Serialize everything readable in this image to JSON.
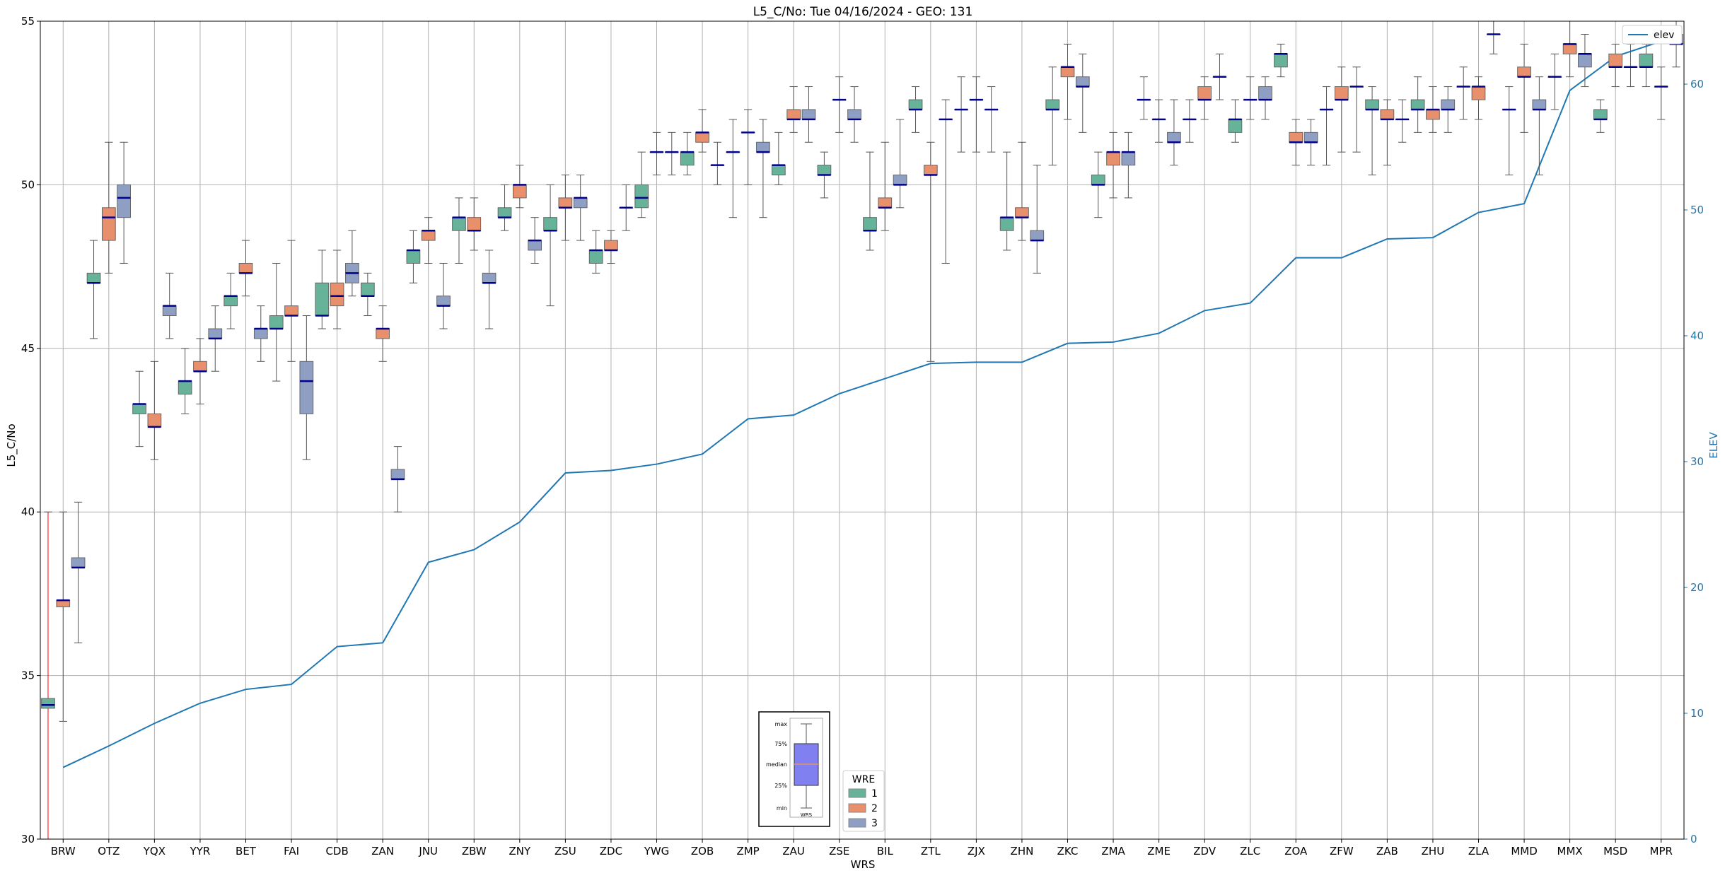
{
  "chart_data": {
    "type": "box",
    "title": "L5_C/No: Tue 04/16/2024 - GEO: 131",
    "xlabel": "WRS",
    "ylabel": "L5_C/No",
    "y2label": "ELEV",
    "ylim": [
      30,
      55
    ],
    "y2lim": [
      0,
      65
    ],
    "yticks": [
      30,
      35,
      40,
      45,
      50,
      55
    ],
    "y2ticks": [
      0,
      10,
      20,
      30,
      40,
      50,
      60
    ],
    "grid": true,
    "categories": [
      "BRW",
      "OTZ",
      "YQX",
      "YYR",
      "BET",
      "FAI",
      "CDB",
      "ZAN",
      "JNU",
      "ZBW",
      "ZNY",
      "ZSU",
      "ZDC",
      "YWG",
      "ZOB",
      "ZMP",
      "ZAU",
      "ZSE",
      "BIL",
      "ZTL",
      "ZJX",
      "ZHN",
      "ZKC",
      "ZMA",
      "ZME",
      "ZDV",
      "ZLC",
      "ZOA",
      "ZFW",
      "ZAB",
      "ZHU",
      "ZLA",
      "MMD",
      "MMX",
      "MSD",
      "MPR"
    ],
    "wre_colors": {
      "1": "#66b39a",
      "2": "#e8906c",
      "3": "#8f9fc4"
    },
    "box_stats": [
      {
        "wrs": "BRW",
        "wre": 1,
        "min": 30,
        "q1": 34.0,
        "median": 34.1,
        "q3": 34.3,
        "max": 40
      },
      {
        "wrs": "BRW",
        "wre": 2,
        "min": 33.6,
        "q1": 37.1,
        "median": 37.3,
        "q3": 37.3,
        "max": 40.0
      },
      {
        "wrs": "BRW",
        "wre": 3,
        "min": 36.0,
        "q1": 38.3,
        "median": 38.3,
        "q3": 38.6,
        "max": 40.3
      },
      {
        "wrs": "OTZ",
        "wre": 1,
        "min": 45.3,
        "q1": 47.0,
        "median": 47.0,
        "q3": 47.3,
        "max": 48.3
      },
      {
        "wrs": "OTZ",
        "wre": 2,
        "min": 47.3,
        "q1": 48.3,
        "median": 49.0,
        "q3": 49.3,
        "max": 51.3
      },
      {
        "wrs": "OTZ",
        "wre": 3,
        "min": 47.6,
        "q1": 49.0,
        "median": 49.6,
        "q3": 50.0,
        "max": 51.3
      },
      {
        "wrs": "YQX",
        "wre": 1,
        "min": 42.0,
        "q1": 43.0,
        "median": 43.3,
        "q3": 43.3,
        "max": 44.3
      },
      {
        "wrs": "YQX",
        "wre": 2,
        "min": 41.6,
        "q1": 42.6,
        "median": 42.6,
        "q3": 43.0,
        "max": 44.6
      },
      {
        "wrs": "YQX",
        "wre": 3,
        "min": 45.3,
        "q1": 46.0,
        "median": 46.3,
        "q3": 46.3,
        "max": 47.3
      },
      {
        "wrs": "YYR",
        "wre": 1,
        "min": 43.0,
        "q1": 43.6,
        "median": 44.0,
        "q3": 44.0,
        "max": 45.0
      },
      {
        "wrs": "YYR",
        "wre": 2,
        "min": 43.3,
        "q1": 44.3,
        "median": 44.3,
        "q3": 44.6,
        "max": 45.3
      },
      {
        "wrs": "YYR",
        "wre": 3,
        "min": 44.3,
        "q1": 45.3,
        "median": 45.3,
        "q3": 45.6,
        "max": 46.3
      },
      {
        "wrs": "BET",
        "wre": 1,
        "min": 45.6,
        "q1": 46.3,
        "median": 46.6,
        "q3": 46.6,
        "max": 47.3
      },
      {
        "wrs": "BET",
        "wre": 2,
        "min": 46.6,
        "q1": 47.3,
        "median": 47.3,
        "q3": 47.6,
        "max": 48.3
      },
      {
        "wrs": "BET",
        "wre": 3,
        "min": 44.6,
        "q1": 45.3,
        "median": 45.6,
        "q3": 45.6,
        "max": 46.3
      },
      {
        "wrs": "FAI",
        "wre": 1,
        "min": 44.0,
        "q1": 45.6,
        "median": 45.6,
        "q3": 46.0,
        "max": 47.6
      },
      {
        "wrs": "FAI",
        "wre": 2,
        "min": 44.6,
        "q1": 46.0,
        "median": 46.0,
        "q3": 46.3,
        "max": 48.3
      },
      {
        "wrs": "FAI",
        "wre": 3,
        "min": 41.6,
        "q1": 43.0,
        "median": 44.0,
        "q3": 44.6,
        "max": 46.0
      },
      {
        "wrs": "CDB",
        "wre": 1,
        "min": 45.6,
        "q1": 46.0,
        "median": 46.0,
        "q3": 47.0,
        "max": 48.0
      },
      {
        "wrs": "CDB",
        "wre": 2,
        "min": 45.6,
        "q1": 46.3,
        "median": 46.6,
        "q3": 47.0,
        "max": 48.0
      },
      {
        "wrs": "CDB",
        "wre": 3,
        "min": 46.6,
        "q1": 47.0,
        "median": 47.3,
        "q3": 47.6,
        "max": 48.6
      },
      {
        "wrs": "ZAN",
        "wre": 1,
        "min": 46.0,
        "q1": 46.6,
        "median": 46.6,
        "q3": 47.0,
        "max": 47.3
      },
      {
        "wrs": "ZAN",
        "wre": 2,
        "min": 44.6,
        "q1": 45.3,
        "median": 45.6,
        "q3": 45.6,
        "max": 46.3
      },
      {
        "wrs": "ZAN",
        "wre": 3,
        "min": 40.0,
        "q1": 41.0,
        "median": 41.0,
        "q3": 41.3,
        "max": 42.0
      },
      {
        "wrs": "JNU",
        "wre": 1,
        "min": 47.0,
        "q1": 47.6,
        "median": 48.0,
        "q3": 48.0,
        "max": 48.6
      },
      {
        "wrs": "JNU",
        "wre": 2,
        "min": 47.6,
        "q1": 48.3,
        "median": 48.6,
        "q3": 48.6,
        "max": 49.0
      },
      {
        "wrs": "JNU",
        "wre": 3,
        "min": 45.6,
        "q1": 46.3,
        "median": 46.3,
        "q3": 46.6,
        "max": 47.6
      },
      {
        "wrs": "ZBW",
        "wre": 1,
        "min": 47.6,
        "q1": 48.6,
        "median": 49.0,
        "q3": 49.0,
        "max": 49.6
      },
      {
        "wrs": "ZBW",
        "wre": 2,
        "min": 48.0,
        "q1": 48.6,
        "median": 48.6,
        "q3": 49.0,
        "max": 49.6
      },
      {
        "wrs": "ZBW",
        "wre": 3,
        "min": 45.6,
        "q1": 47.0,
        "median": 47.0,
        "q3": 47.3,
        "max": 48.0
      },
      {
        "wrs": "ZNY",
        "wre": 1,
        "min": 48.6,
        "q1": 49.0,
        "median": 49.0,
        "q3": 49.3,
        "max": 50.0
      },
      {
        "wrs": "ZNY",
        "wre": 2,
        "min": 49.3,
        "q1": 49.6,
        "median": 50.0,
        "q3": 50.0,
        "max": 50.6
      },
      {
        "wrs": "ZNY",
        "wre": 3,
        "min": 47.6,
        "q1": 48.0,
        "median": 48.3,
        "q3": 48.3,
        "max": 49.0
      },
      {
        "wrs": "ZSU",
        "wre": 1,
        "min": 46.3,
        "q1": 48.6,
        "median": 48.6,
        "q3": 49.0,
        "max": 50.0
      },
      {
        "wrs": "ZSU",
        "wre": 2,
        "min": 48.3,
        "q1": 49.3,
        "median": 49.3,
        "q3": 49.6,
        "max": 50.3
      },
      {
        "wrs": "ZSU",
        "wre": 3,
        "min": 48.3,
        "q1": 49.3,
        "median": 49.6,
        "q3": 49.6,
        "max": 50.3
      },
      {
        "wrs": "ZDC",
        "wre": 1,
        "min": 47.3,
        "q1": 47.6,
        "median": 48.0,
        "q3": 48.0,
        "max": 48.6
      },
      {
        "wrs": "ZDC",
        "wre": 2,
        "min": 47.6,
        "q1": 48.0,
        "median": 48.0,
        "q3": 48.3,
        "max": 48.6
      },
      {
        "wrs": "ZDC",
        "wre": 3,
        "min": 48.6,
        "q1": 49.3,
        "median": 49.3,
        "q3": 49.3,
        "max": 50.0
      },
      {
        "wrs": "YWG",
        "wre": 1,
        "min": 49.0,
        "q1": 49.3,
        "median": 49.6,
        "q3": 50.0,
        "max": 51.0
      },
      {
        "wrs": "YWG",
        "wre": 2,
        "min": 50.3,
        "q1": 51.0,
        "median": 51.0,
        "q3": 51.0,
        "max": 51.6
      },
      {
        "wrs": "YWG",
        "wre": 3,
        "min": 50.3,
        "q1": 51.0,
        "median": 51.0,
        "q3": 51.0,
        "max": 51.6
      },
      {
        "wrs": "ZOB",
        "wre": 1,
        "min": 50.3,
        "q1": 50.6,
        "median": 51.0,
        "q3": 51.0,
        "max": 51.6
      },
      {
        "wrs": "ZOB",
        "wre": 2,
        "min": 51.0,
        "q1": 51.3,
        "median": 51.6,
        "q3": 51.6,
        "max": 52.3
      },
      {
        "wrs": "ZOB",
        "wre": 3,
        "min": 50.0,
        "q1": 50.6,
        "median": 50.6,
        "q3": 50.6,
        "max": 51.3
      },
      {
        "wrs": "ZMP",
        "wre": 1,
        "min": 49.0,
        "q1": 51.0,
        "median": 51.0,
        "q3": 51.0,
        "max": 52.0
      },
      {
        "wrs": "ZMP",
        "wre": 2,
        "min": 50.0,
        "q1": 51.6,
        "median": 51.6,
        "q3": 51.6,
        "max": 52.3
      },
      {
        "wrs": "ZMP",
        "wre": 3,
        "min": 49.0,
        "q1": 51.0,
        "median": 51.0,
        "q3": 51.3,
        "max": 52.0
      },
      {
        "wrs": "ZAU",
        "wre": 1,
        "min": 50.0,
        "q1": 50.3,
        "median": 50.6,
        "q3": 50.6,
        "max": 51.6
      },
      {
        "wrs": "ZAU",
        "wre": 2,
        "min": 51.6,
        "q1": 52.0,
        "median": 52.0,
        "q3": 52.3,
        "max": 53.0
      },
      {
        "wrs": "ZAU",
        "wre": 3,
        "min": 51.3,
        "q1": 52.0,
        "median": 52.0,
        "q3": 52.3,
        "max": 53.0
      },
      {
        "wrs": "ZSE",
        "wre": 1,
        "min": 49.6,
        "q1": 50.3,
        "median": 50.3,
        "q3": 50.6,
        "max": 51.0
      },
      {
        "wrs": "ZSE",
        "wre": 2,
        "min": 51.6,
        "q1": 52.6,
        "median": 52.6,
        "q3": 52.6,
        "max": 53.3
      },
      {
        "wrs": "ZSE",
        "wre": 3,
        "min": 51.3,
        "q1": 52.0,
        "median": 52.0,
        "q3": 52.3,
        "max": 53.0
      },
      {
        "wrs": "BIL",
        "wre": 1,
        "min": 48.0,
        "q1": 48.6,
        "median": 48.6,
        "q3": 49.0,
        "max": 51.0
      },
      {
        "wrs": "BIL",
        "wre": 2,
        "min": 48.6,
        "q1": 49.3,
        "median": 49.3,
        "q3": 49.6,
        "max": 51.3
      },
      {
        "wrs": "BIL",
        "wre": 3,
        "min": 49.3,
        "q1": 50.0,
        "median": 50.0,
        "q3": 50.3,
        "max": 52.0
      },
      {
        "wrs": "ZTL",
        "wre": 1,
        "min": 51.6,
        "q1": 52.3,
        "median": 52.3,
        "q3": 52.6,
        "max": 53.0
      },
      {
        "wrs": "ZTL",
        "wre": 2,
        "min": 44.6,
        "q1": 50.3,
        "median": 50.3,
        "q3": 50.6,
        "max": 51.3
      },
      {
        "wrs": "ZTL",
        "wre": 3,
        "min": 47.6,
        "q1": 52.0,
        "median": 52.0,
        "q3": 52.0,
        "max": 52.6
      },
      {
        "wrs": "ZJX",
        "wre": 1,
        "min": 51.0,
        "q1": 52.3,
        "median": 52.3,
        "q3": 52.3,
        "max": 53.3
      },
      {
        "wrs": "ZJX",
        "wre": 2,
        "min": 51.0,
        "q1": 52.6,
        "median": 52.6,
        "q3": 52.6,
        "max": 53.3
      },
      {
        "wrs": "ZJX",
        "wre": 3,
        "min": 51.0,
        "q1": 52.3,
        "median": 52.3,
        "q3": 52.3,
        "max": 53.0
      },
      {
        "wrs": "ZHN",
        "wre": 1,
        "min": 48.0,
        "q1": 48.6,
        "median": 49.0,
        "q3": 49.0,
        "max": 51.0
      },
      {
        "wrs": "ZHN",
        "wre": 2,
        "min": 48.3,
        "q1": 49.0,
        "median": 49.0,
        "q3": 49.3,
        "max": 51.3
      },
      {
        "wrs": "ZHN",
        "wre": 3,
        "min": 47.3,
        "q1": 48.3,
        "median": 48.3,
        "q3": 48.6,
        "max": 50.6
      },
      {
        "wrs": "ZKC",
        "wre": 1,
        "min": 50.6,
        "q1": 52.3,
        "median": 52.3,
        "q3": 52.6,
        "max": 53.6
      },
      {
        "wrs": "ZKC",
        "wre": 2,
        "min": 52.0,
        "q1": 53.3,
        "median": 53.6,
        "q3": 53.6,
        "max": 54.3
      },
      {
        "wrs": "ZKC",
        "wre": 3,
        "min": 51.6,
        "q1": 53.0,
        "median": 53.0,
        "q3": 53.3,
        "max": 54.0
      },
      {
        "wrs": "ZMA",
        "wre": 1,
        "min": 49.0,
        "q1": 50.0,
        "median": 50.0,
        "q3": 50.3,
        "max": 51.0
      },
      {
        "wrs": "ZMA",
        "wre": 2,
        "min": 49.6,
        "q1": 50.6,
        "median": 51.0,
        "q3": 51.0,
        "max": 51.6
      },
      {
        "wrs": "ZMA",
        "wre": 3,
        "min": 49.6,
        "q1": 50.6,
        "median": 51.0,
        "q3": 51.0,
        "max": 51.6
      },
      {
        "wrs": "ZME",
        "wre": 1,
        "min": 52.0,
        "q1": 52.6,
        "median": 52.6,
        "q3": 52.6,
        "max": 53.3
      },
      {
        "wrs": "ZME",
        "wre": 2,
        "min": 51.3,
        "q1": 52.0,
        "median": 52.0,
        "q3": 52.0,
        "max": 52.6
      },
      {
        "wrs": "ZME",
        "wre": 3,
        "min": 50.6,
        "q1": 51.3,
        "median": 51.3,
        "q3": 51.6,
        "max": 52.6
      },
      {
        "wrs": "ZDV",
        "wre": 1,
        "min": 51.3,
        "q1": 52.0,
        "median": 52.0,
        "q3": 52.0,
        "max": 52.6
      },
      {
        "wrs": "ZDV",
        "wre": 2,
        "min": 52.0,
        "q1": 52.6,
        "median": 52.6,
        "q3": 53.0,
        "max": 53.3
      },
      {
        "wrs": "ZDV",
        "wre": 3,
        "min": 52.6,
        "q1": 53.3,
        "median": 53.3,
        "q3": 53.3,
        "max": 54.0
      },
      {
        "wrs": "ZLC",
        "wre": 1,
        "min": 51.3,
        "q1": 51.6,
        "median": 52.0,
        "q3": 52.0,
        "max": 52.6
      },
      {
        "wrs": "ZLC",
        "wre": 2,
        "min": 52.0,
        "q1": 52.6,
        "median": 52.6,
        "q3": 52.6,
        "max": 53.3
      },
      {
        "wrs": "ZLC",
        "wre": 3,
        "min": 52.0,
        "q1": 52.6,
        "median": 52.6,
        "q3": 53.0,
        "max": 53.3
      },
      {
        "wrs": "ZOA",
        "wre": 1,
        "min": 53.3,
        "q1": 53.6,
        "median": 54.0,
        "q3": 54.0,
        "max": 54.3
      },
      {
        "wrs": "ZOA",
        "wre": 2,
        "min": 50.6,
        "q1": 51.3,
        "median": 51.3,
        "q3": 51.6,
        "max": 52.0
      },
      {
        "wrs": "ZOA",
        "wre": 3,
        "min": 50.6,
        "q1": 51.3,
        "median": 51.3,
        "q3": 51.6,
        "max": 52.0
      },
      {
        "wrs": "ZFW",
        "wre": 1,
        "min": 50.6,
        "q1": 52.3,
        "median": 52.3,
        "q3": 52.3,
        "max": 53.0
      },
      {
        "wrs": "ZFW",
        "wre": 2,
        "min": 51.0,
        "q1": 52.6,
        "median": 52.6,
        "q3": 53.0,
        "max": 53.6
      },
      {
        "wrs": "ZFW",
        "wre": 3,
        "min": 51.0,
        "q1": 53.0,
        "median": 53.0,
        "q3": 53.0,
        "max": 53.6
      },
      {
        "wrs": "ZAB",
        "wre": 1,
        "min": 50.3,
        "q1": 52.3,
        "median": 52.3,
        "q3": 52.6,
        "max": 53.0
      },
      {
        "wrs": "ZAB",
        "wre": 2,
        "min": 50.6,
        "q1": 52.0,
        "median": 52.0,
        "q3": 52.3,
        "max": 52.6
      },
      {
        "wrs": "ZAB",
        "wre": 3,
        "min": 51.3,
        "q1": 52.0,
        "median": 52.0,
        "q3": 52.0,
        "max": 52.6
      },
      {
        "wrs": "ZHU",
        "wre": 1,
        "min": 51.6,
        "q1": 52.3,
        "median": 52.3,
        "q3": 52.6,
        "max": 53.3
      },
      {
        "wrs": "ZHU",
        "wre": 2,
        "min": 51.6,
        "q1": 52.0,
        "median": 52.3,
        "q3": 52.3,
        "max": 53.0
      },
      {
        "wrs": "ZHU",
        "wre": 3,
        "min": 51.6,
        "q1": 52.3,
        "median": 52.3,
        "q3": 52.6,
        "max": 53.0
      },
      {
        "wrs": "ZLA",
        "wre": 1,
        "min": 52.0,
        "q1": 53.0,
        "median": 53.0,
        "q3": 53.0,
        "max": 53.6
      },
      {
        "wrs": "ZLA",
        "wre": 2,
        "min": 52.0,
        "q1": 52.6,
        "median": 53.0,
        "q3": 53.0,
        "max": 53.3
      },
      {
        "wrs": "ZLA",
        "wre": 3,
        "min": 54.0,
        "q1": 54.6,
        "median": 54.6,
        "q3": 54.6,
        "max": 55.0
      },
      {
        "wrs": "MMD",
        "wre": 1,
        "min": 50.3,
        "q1": 52.3,
        "median": 52.3,
        "q3": 52.3,
        "max": 53.0
      },
      {
        "wrs": "MMD",
        "wre": 2,
        "min": 51.6,
        "q1": 53.3,
        "median": 53.3,
        "q3": 53.6,
        "max": 54.3
      },
      {
        "wrs": "MMD",
        "wre": 3,
        "min": 50.3,
        "q1": 52.3,
        "median": 52.3,
        "q3": 52.6,
        "max": 53.3
      },
      {
        "wrs": "MMX",
        "wre": 1,
        "min": 52.3,
        "q1": 53.3,
        "median": 53.3,
        "q3": 53.3,
        "max": 54.0
      },
      {
        "wrs": "MMX",
        "wre": 2,
        "min": 53.3,
        "q1": 54.0,
        "median": 54.3,
        "q3": 54.3,
        "max": 55.0
      },
      {
        "wrs": "MMX",
        "wre": 3,
        "min": 53.0,
        "q1": 53.6,
        "median": 54.0,
        "q3": 54.0,
        "max": 54.6
      },
      {
        "wrs": "MSD",
        "wre": 1,
        "min": 51.6,
        "q1": 52.0,
        "median": 52.0,
        "q3": 52.3,
        "max": 52.6
      },
      {
        "wrs": "MSD",
        "wre": 2,
        "min": 53.0,
        "q1": 53.6,
        "median": 53.6,
        "q3": 54.0,
        "max": 54.3
      },
      {
        "wrs": "MSD",
        "wre": 3,
        "min": 53.0,
        "q1": 53.6,
        "median": 53.6,
        "q3": 53.6,
        "max": 54.3
      },
      {
        "wrs": "MPR",
        "wre": 1,
        "min": 53.0,
        "q1": 53.6,
        "median": 53.6,
        "q3": 54.0,
        "max": 54.3
      },
      {
        "wrs": "MPR",
        "wre": 2,
        "min": 52.0,
        "q1": 53.0,
        "median": 53.0,
        "q3": 53.0,
        "max": 53.6
      },
      {
        "wrs": "MPR",
        "wre": 3,
        "min": 53.6,
        "q1": 54.3,
        "median": 54.3,
        "q3": 54.6,
        "max": 55.0
      }
    ],
    "elev_series": {
      "name": "elev",
      "color": "#1f77b4",
      "values": [
        5.7,
        7.4,
        9.2,
        10.8,
        11.9,
        12.3,
        15.3,
        15.6,
        22.0,
        23.0,
        25.2,
        29.1,
        29.3,
        29.8,
        30.6,
        33.4,
        33.7,
        35.4,
        36.6,
        37.8,
        37.9,
        37.9,
        39.4,
        39.5,
        40.2,
        42.0,
        42.6,
        46.2,
        46.2,
        47.7,
        47.8,
        49.8,
        50.5,
        59.5,
        62.2,
        63.4
      ]
    },
    "legend": {
      "title": "WRE",
      "entries": [
        "1",
        "2",
        "3"
      ],
      "placement": "bottom-center"
    },
    "elev_legend": {
      "entries": [
        "elev"
      ],
      "placement": "top-right"
    },
    "inset": {
      "labels": [
        "max",
        "75%",
        "median",
        "25%",
        "min"
      ],
      "xlabel": "WRS"
    }
  }
}
